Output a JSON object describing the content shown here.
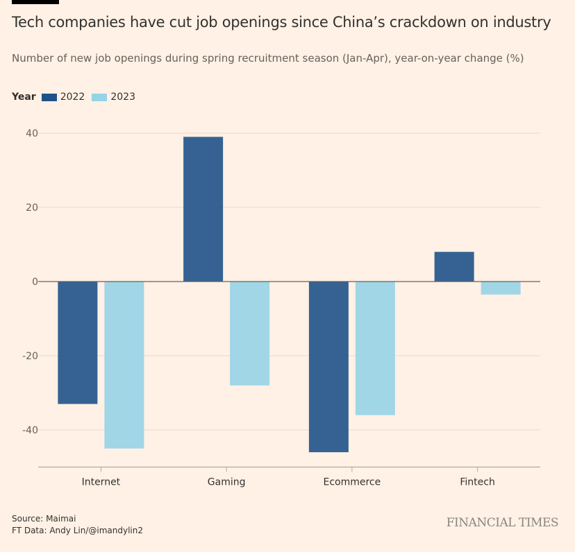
{
  "title": "Tech companies have cut job openings since China’s crackdown on industry",
  "subtitle": "Number of new job openings during spring recruitment season (Jan-Apr), year-on-year change (%)",
  "legend_title": "Year",
  "source": "Source: Maimai",
  "credit": "FT Data: Andy Lin/@imandylin2",
  "logo": "FINANCIAL TIMES",
  "chart_data": {
    "type": "bar",
    "categories": [
      "Internet",
      "Gaming",
      "Ecommerce",
      "Fintech"
    ],
    "series": [
      {
        "name": "2022",
        "color": "#1f5289",
        "values": [
          -33,
          39,
          -46,
          8
        ]
      },
      {
        "name": "2023",
        "color": "#96d3e6",
        "values": [
          -45,
          -28,
          -36,
          -3.5
        ]
      }
    ],
    "yticks": [
      40,
      20,
      0,
      -20,
      -40
    ],
    "ylim": [
      -50,
      40
    ],
    "grid": true,
    "legend_position": "top-left"
  }
}
